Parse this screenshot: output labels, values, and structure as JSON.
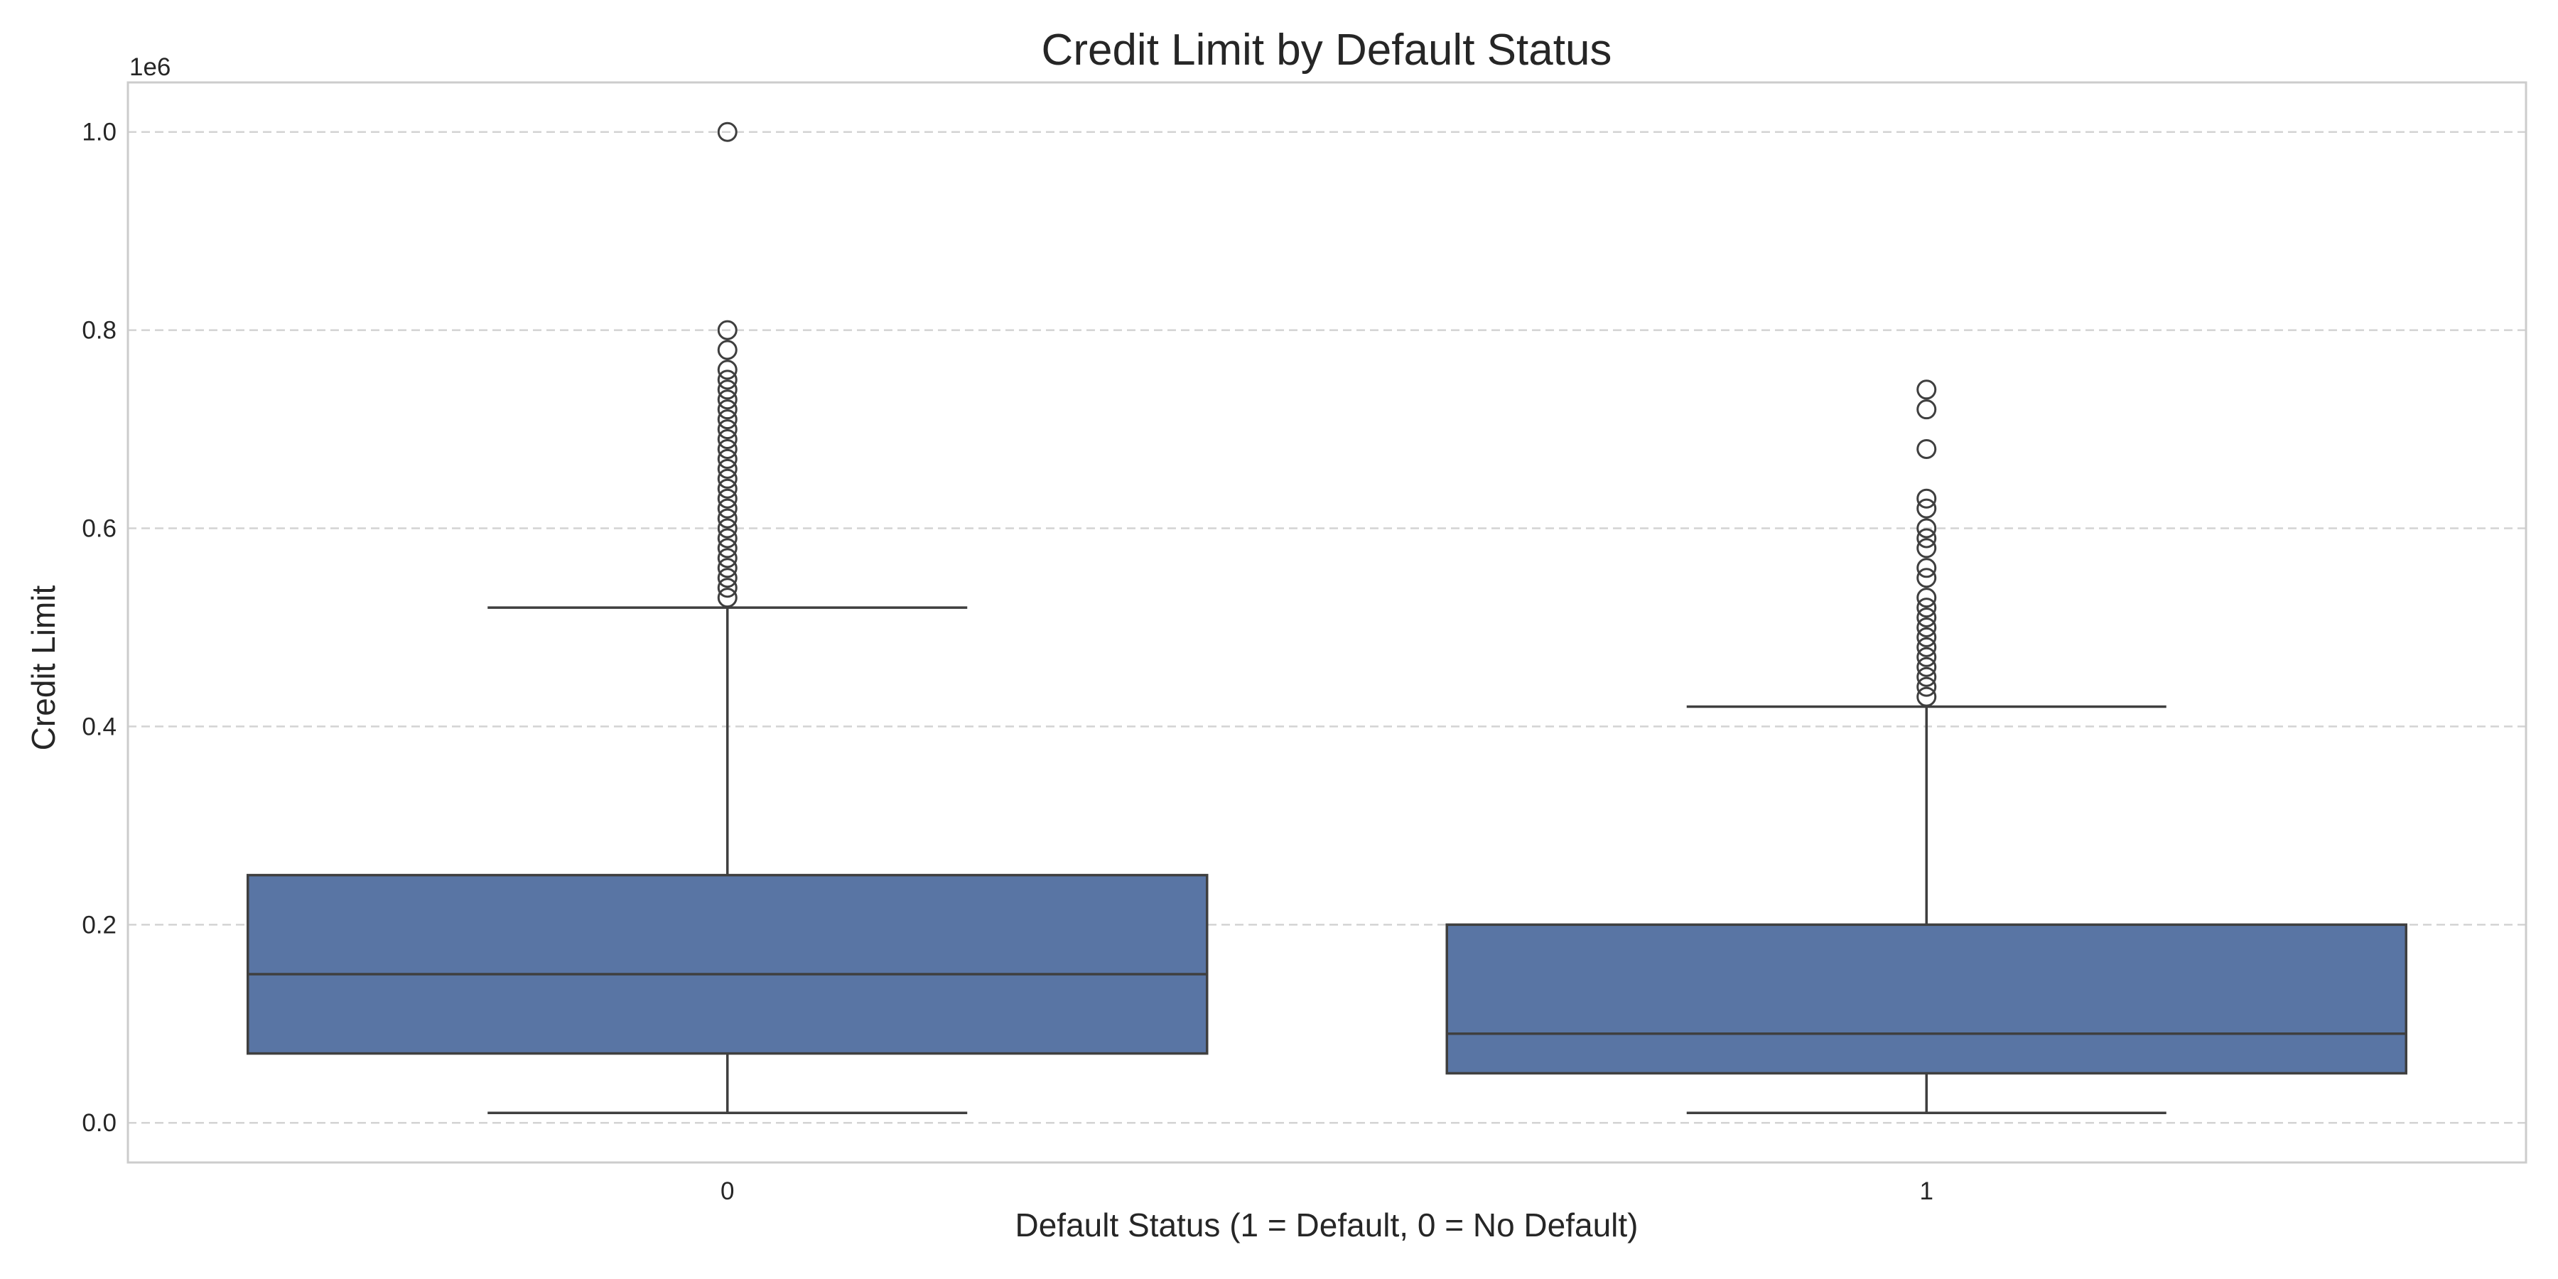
{
  "chart_data": {
    "type": "box",
    "title": "Credit Limit by Default Status",
    "xlabel": "Default Status (1 = Default, 0 = No Default)",
    "ylabel": "Credit Limit",
    "y_offset_label": "1e6",
    "ylim": [
      -0.04,
      1.05
    ],
    "y_ticks": [
      0.0,
      0.2,
      0.4,
      0.6,
      0.8,
      1.0
    ],
    "y_tick_labels": [
      "0.0",
      "0.2",
      "0.4",
      "0.6",
      "0.8",
      "1.0"
    ],
    "grid": true,
    "categories": [
      "0",
      "1"
    ],
    "boxes": [
      {
        "category": "0",
        "whisker_low": 0.01,
        "q1": 0.07,
        "median": 0.15,
        "q3": 0.25,
        "whisker_high": 0.52,
        "outliers": [
          0.53,
          0.54,
          0.55,
          0.56,
          0.57,
          0.58,
          0.59,
          0.6,
          0.61,
          0.62,
          0.63,
          0.64,
          0.65,
          0.66,
          0.67,
          0.68,
          0.69,
          0.7,
          0.71,
          0.72,
          0.73,
          0.74,
          0.75,
          0.76,
          0.78,
          0.8,
          1.0
        ]
      },
      {
        "category": "1",
        "whisker_low": 0.01,
        "q1": 0.05,
        "median": 0.09,
        "q3": 0.2,
        "whisker_high": 0.42,
        "outliers": [
          0.43,
          0.44,
          0.45,
          0.46,
          0.47,
          0.48,
          0.49,
          0.5,
          0.51,
          0.52,
          0.53,
          0.55,
          0.56,
          0.58,
          0.59,
          0.6,
          0.62,
          0.63,
          0.68,
          0.72,
          0.74
        ]
      }
    ],
    "colors": {
      "box_fill": "#5975a4",
      "line": "#3f3f3f",
      "grid": "#d3d3d3",
      "frame": "#cccccc"
    }
  }
}
